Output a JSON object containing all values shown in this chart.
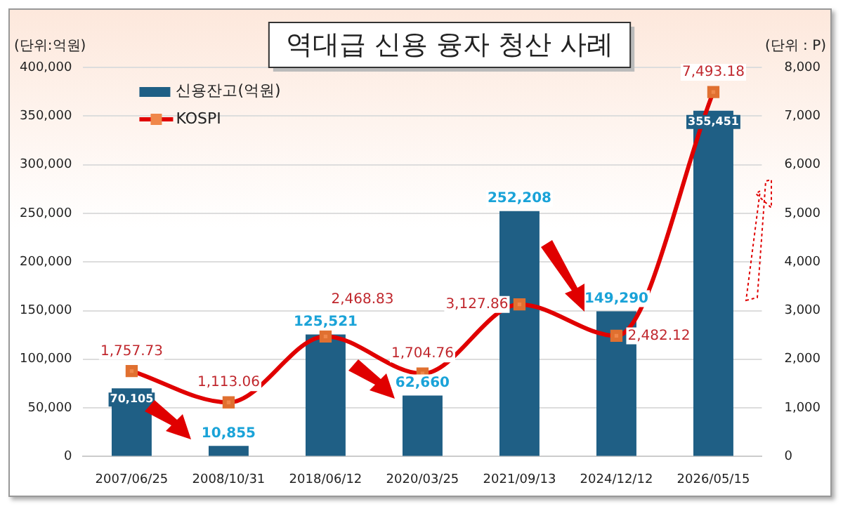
{
  "chart_data": {
    "type": "bar",
    "title": "역대급 신용 융자 청산 사례",
    "ylabel": "(단위:억원)",
    "y2label": "(단위 : P)",
    "categories": [
      "2007/06/25",
      "2008/10/31",
      "2018/06/12",
      "2020/03/25",
      "2021/09/13",
      "2024/12/12",
      "2026/05/15"
    ],
    "series": [
      {
        "name": "신용잔고(억원)",
        "color": "#1f5f85",
        "values": [
          70105,
          10855,
          125521,
          62660,
          252208,
          149290,
          355451
        ],
        "value_labels": [
          "70,105",
          "10,855",
          "125,521",
          "62,660",
          "252,208",
          "149,290",
          "355,451"
        ]
      },
      {
        "name": "KOSPI",
        "type": "line",
        "axis": "y2",
        "color": "#e00000",
        "marker": "square",
        "values": [
          1757.73,
          1113.06,
          2468.83,
          1704.76,
          3127.86,
          2482.12,
          7493.18
        ],
        "value_labels": [
          "1,757.73",
          "1,113.06",
          "2,468.83",
          "1,704.76",
          "3,127.86",
          "2,482.12",
          "7,493.18"
        ]
      }
    ],
    "ylim": [
      0,
      400000
    ],
    "yticks": [
      {
        "value": 0,
        "label": "0"
      },
      {
        "value": 50000,
        "label": "50,000"
      },
      {
        "value": 100000,
        "label": "100,000"
      },
      {
        "value": 150000,
        "label": "150,000"
      },
      {
        "value": 200000,
        "label": "200,000"
      },
      {
        "value": 250000,
        "label": "250,000"
      },
      {
        "value": 300000,
        "label": "300,000"
      },
      {
        "value": 350000,
        "label": "350,000"
      },
      {
        "value": 400000,
        "label": "400,000"
      }
    ],
    "y2lim": [
      0,
      8000
    ],
    "y2ticks": [
      {
        "value": 0,
        "label": "0"
      },
      {
        "value": 1000,
        "label": "1,000"
      },
      {
        "value": 2000,
        "label": "2,000"
      },
      {
        "value": 3000,
        "label": "3,000"
      },
      {
        "value": 4000,
        "label": "4,000"
      },
      {
        "value": 5000,
        "label": "5,000"
      },
      {
        "value": 6000,
        "label": "6,000"
      },
      {
        "value": 7000,
        "label": "7,000"
      },
      {
        "value": 8000,
        "label": "8,000"
      }
    ],
    "grid": "y",
    "legend": "top left"
  }
}
